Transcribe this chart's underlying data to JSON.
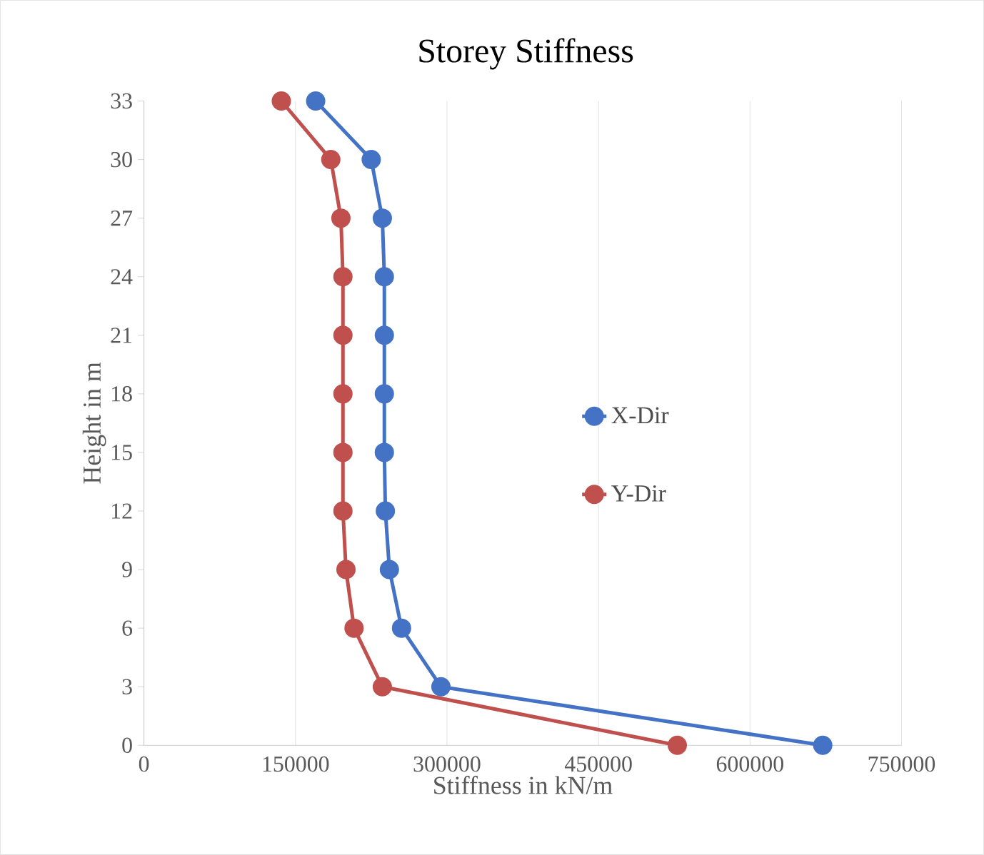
{
  "chart_data": {
    "type": "line",
    "title": "Storey Stiffness",
    "xlabel": "Stiffness in kN/m",
    "ylabel": "Height in m",
    "xlim": [
      0,
      750000
    ],
    "xticks": [
      0,
      150000,
      300000,
      450000,
      600000,
      750000
    ],
    "ylim": [
      0,
      33
    ],
    "yticks": [
      0,
      3,
      6,
      9,
      12,
      15,
      18,
      21,
      24,
      27,
      30,
      33
    ],
    "grid": "x",
    "legend": "right",
    "marker": "circle",
    "line_style": "solid",
    "series": [
      {
        "name": "X-Dir",
        "color": "#4472c4",
        "x": [
          672000,
          294000,
          255000,
          243000,
          239000,
          238000,
          238000,
          238000,
          238000,
          236000,
          225000,
          170000
        ],
        "values": [
          0,
          3,
          6,
          9,
          12,
          15,
          18,
          21,
          24,
          27,
          30,
          33
        ]
      },
      {
        "name": "Y-Dir",
        "color": "#c0504d",
        "x": [
          528000,
          236000,
          208000,
          200000,
          197000,
          197000,
          197000,
          197000,
          197000,
          195000,
          185000,
          136000
        ],
        "values": [
          0,
          3,
          6,
          9,
          12,
          15,
          18,
          21,
          24,
          27,
          30,
          33
        ]
      }
    ]
  }
}
